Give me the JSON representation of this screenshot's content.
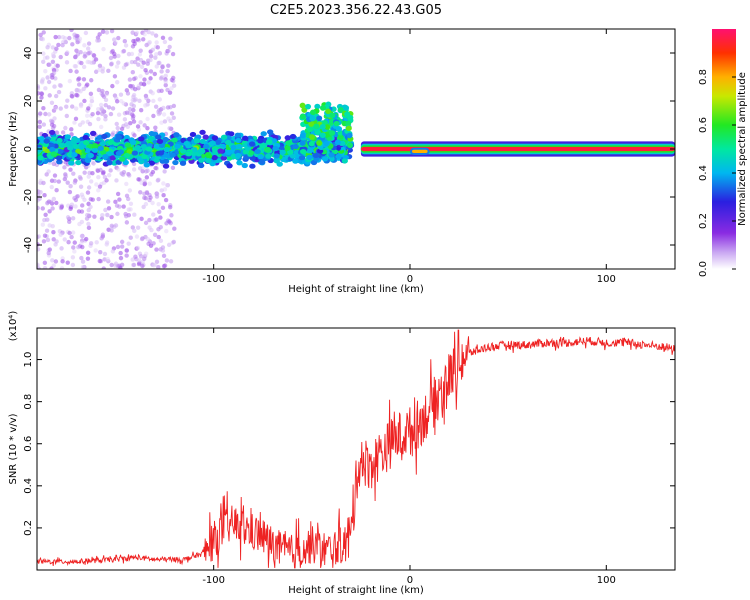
{
  "title": "C2E5.2023.356.22.43.G05",
  "chart_data": [
    {
      "type": "heatmap",
      "name": "spectrogram",
      "xlabel": "Height of straight line (km)",
      "ylabel": "Frequency (Hz)",
      "xlim": [
        -190,
        135
      ],
      "ylim": [
        -50,
        50
      ],
      "x_ticks": [
        -100,
        0,
        100
      ],
      "y_ticks": [
        -40,
        -20,
        0,
        20,
        40
      ],
      "colorbar": {
        "label": "Normalized spectral amplitude",
        "range": [
          0,
          1
        ],
        "ticks": [
          "0.0",
          "0.2",
          "0.4",
          "0.6",
          "0.8"
        ]
      },
      "features": [
        {
          "x_range": [
            -190,
            -120
          ],
          "freq_spread_hz": 50,
          "amplitude": 0.05
        },
        {
          "x_range": [
            -190,
            -30
          ],
          "center_freq_hz": 0,
          "band_width_hz": 8,
          "amplitude": 0.3
        },
        {
          "x_range": [
            -55,
            -30
          ],
          "center_freq_hz": 12,
          "band_width_hz": 8,
          "amplitude": 0.35
        },
        {
          "x_range": [
            -25,
            135
          ],
          "center_freq_hz": 0,
          "band_width_hz": 2,
          "amplitude": 0.95
        },
        {
          "x_range": [
            0,
            10
          ],
          "center_freq_hz": -1,
          "band_width_hz": 3,
          "amplitude": 0.8
        }
      ]
    },
    {
      "type": "line",
      "name": "snr",
      "xlabel": "Height of straight line (km)",
      "ylabel": "SNR (10 * v/v)",
      "y_multiplier": "(x10⁴)",
      "xlim": [
        -190,
        135
      ],
      "ylim": [
        0,
        1.15
      ],
      "x_ticks": [
        -100,
        0,
        100
      ],
      "y_ticks": [
        "0.2",
        "0.4",
        "0.6",
        "0.8",
        "1.0"
      ],
      "color": "#ee2222",
      "x": [
        -190,
        -170,
        -150,
        -140,
        -130,
        -115,
        -105,
        -100,
        -95,
        -90,
        -85,
        -80,
        -75,
        -70,
        -65,
        -60,
        -55,
        -50,
        -45,
        -40,
        -35,
        -30,
        -27,
        -25,
        -22,
        -20,
        -15,
        -10,
        -5,
        0,
        5,
        10,
        15,
        20,
        25,
        30,
        40,
        50,
        60,
        70,
        80,
        90,
        100,
        110,
        120,
        130,
        135
      ],
      "y": [
        0.04,
        0.04,
        0.05,
        0.06,
        0.05,
        0.05,
        0.08,
        0.14,
        0.2,
        0.22,
        0.2,
        0.18,
        0.16,
        0.12,
        0.09,
        0.08,
        0.1,
        0.12,
        0.1,
        0.09,
        0.12,
        0.16,
        0.45,
        0.55,
        0.5,
        0.5,
        0.55,
        0.6,
        0.64,
        0.66,
        0.7,
        0.76,
        0.84,
        0.92,
        0.99,
        1.03,
        1.06,
        1.07,
        1.07,
        1.08,
        1.08,
        1.09,
        1.08,
        1.08,
        1.07,
        1.06,
        1.05
      ]
    }
  ]
}
